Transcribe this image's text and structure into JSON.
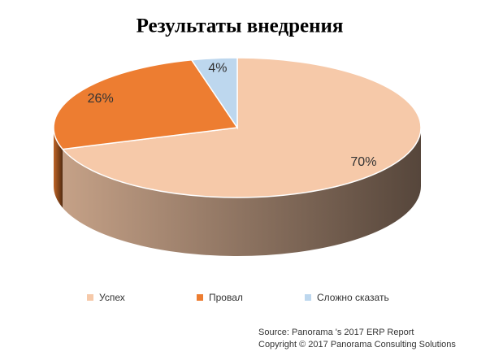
{
  "chart_data": {
    "type": "pie3d",
    "title": "Результаты внедрения",
    "categories": [
      "Успех",
      "Провал",
      "Сложно сказать"
    ],
    "values": [
      70,
      26,
      4
    ],
    "value_labels": [
      "70%",
      "26%",
      "4%"
    ],
    "colors": [
      "#f6c9a9",
      "#ed7d31",
      "#bdd7ee"
    ],
    "source": [
      "Source: Panorama 's 2017 ERP Report",
      "Copyright © 2017 Panorama Consulting Solutions"
    ]
  }
}
